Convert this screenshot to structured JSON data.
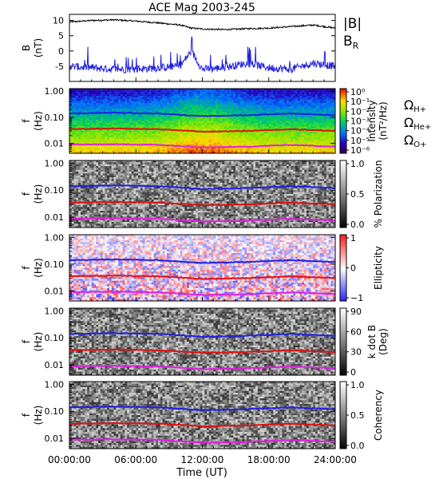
{
  "chart_data": {
    "title": "ACE Mag 2003-245",
    "xlabel": "Time (UT)",
    "x_ticks": [
      "00:00:00",
      "06:00:00",
      "12:00:00",
      "18:00:00",
      "24:00:00"
    ],
    "panels": [
      {
        "type": "line",
        "ylabel_top": "B",
        "ylabel_bottom": "(nT)",
        "ylim": [
          -10,
          12
        ],
        "y_ticks": [
          "10",
          "5",
          "0",
          "-5"
        ],
        "legend": [
          {
            "main": "|B|",
            "sub": "",
            "color": "#000000"
          },
          {
            "main": "B",
            "sub": "R",
            "color": "#2020e0"
          }
        ],
        "series": [
          {
            "name": "|B|",
            "color": "#000000",
            "x_hours": [
              0,
              2,
              4,
              6,
              8,
              10,
              11,
              12,
              14,
              16,
              18,
              20,
              22,
              24
            ],
            "values": [
              9.5,
              10,
              10.2,
              9.8,
              9.2,
              8.5,
              7.5,
              7.2,
              7,
              7.3,
              7.5,
              8,
              8.5,
              7.5
            ]
          },
          {
            "name": "B_R",
            "color": "#2020e0",
            "x_hours": [
              0,
              2,
              4,
              6,
              8,
              10,
              11,
              12,
              14,
              16,
              18,
              20,
              22,
              24
            ],
            "values": [
              -5,
              -5.5,
              -6,
              -6,
              -5.5,
              -5,
              0,
              -6,
              -5.5,
              -4,
              -5.5,
              -6,
              -4,
              -5
            ]
          }
        ]
      },
      {
        "type": "heatmap",
        "palette": "rainbow",
        "ylabel_top": "f",
        "ylabel_bottom": "(Hz)",
        "y_ticks": [
          "1.00",
          "0.10",
          "0.01"
        ],
        "colorbar_title": "Intensity",
        "colorbar_unit": "(nT²/Hz)",
        "colorbar_ticks": [
          "10⁰",
          "10⁻¹",
          "10⁻²",
          "10⁻³",
          "10⁻⁴",
          "10⁻⁵",
          "10⁻⁶"
        ],
        "legend": [
          {
            "main": "Ω",
            "sub": "H+",
            "color": "#2020e0"
          },
          {
            "main": "Ω",
            "sub": "He+",
            "color": "#e01010"
          },
          {
            "main": "Ω",
            "sub": "O+",
            "color": "#e020e0"
          }
        ]
      },
      {
        "type": "heatmap",
        "palette": "gray",
        "ylabel_top": "f",
        "ylabel_bottom": "(Hz)",
        "y_ticks": [
          "1.00",
          "0.10",
          "0.01"
        ],
        "colorbar_title": "% Polarization",
        "colorbar_ticks": [
          "1.0",
          "0.5",
          "0.0"
        ]
      },
      {
        "type": "heatmap",
        "palette": "bwr",
        "ylabel_top": "f",
        "ylabel_bottom": "(Hz)",
        "y_ticks": [
          "1.00",
          "0.10",
          "0.01"
        ],
        "colorbar_title": "Ellipticity",
        "colorbar_ticks": [
          "1",
          "0",
          "−1"
        ]
      },
      {
        "type": "heatmap",
        "palette": "gray",
        "ylabel_top": "f",
        "ylabel_bottom": "(Hz)",
        "y_ticks": [
          "1.00",
          "0.10",
          "0.01"
        ],
        "colorbar_title": "k dot B",
        "colorbar_unit": "(Deg)",
        "colorbar_ticks": [
          "90",
          "60",
          "30",
          "0"
        ]
      },
      {
        "type": "heatmap",
        "palette": "gray",
        "ylabel_top": "f",
        "ylabel_bottom": "(Hz)",
        "y_ticks": [
          "1.00",
          "0.10",
          "0.01"
        ],
        "colorbar_title": "Coherency",
        "colorbar_ticks": [
          "1.0",
          "0.5",
          "0.0"
        ]
      }
    ],
    "cyclotron_lines": {
      "x_hours": [
        0,
        4,
        8,
        12,
        16,
        20,
        24
      ],
      "H+": {
        "color": "#2020e0",
        "values": [
          0.14,
          0.15,
          0.14,
          0.11,
          0.12,
          0.14,
          0.12
        ]
      },
      "He+": {
        "color": "#e01010",
        "values": [
          0.035,
          0.037,
          0.035,
          0.028,
          0.03,
          0.035,
          0.03
        ]
      },
      "O+": {
        "color": "#e020e0",
        "values": [
          0.009,
          0.0093,
          0.0088,
          0.007,
          0.0075,
          0.0088,
          0.0075
        ]
      }
    },
    "grid": false
  }
}
